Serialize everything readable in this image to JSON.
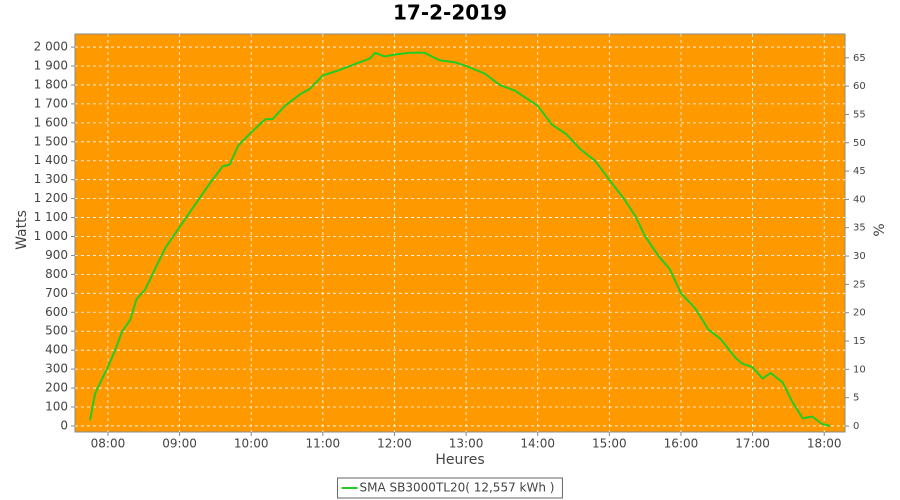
{
  "chart_data": {
    "type": "line",
    "title": "17-2-2019",
    "x_label": "Heures",
    "y_label": "Watts",
    "y2_label": "%",
    "x": [
      7.75,
      7.82,
      7.92,
      8.0,
      8.1,
      8.2,
      8.31,
      8.4,
      8.52,
      8.66,
      8.8,
      9.0,
      9.22,
      9.42,
      9.6,
      9.7,
      9.82,
      10.0,
      10.2,
      10.3,
      10.47,
      10.68,
      10.82,
      11.0,
      11.24,
      11.45,
      11.66,
      11.73,
      11.86,
      12.0,
      12.21,
      12.42,
      12.63,
      12.84,
      13.0,
      13.26,
      13.47,
      13.68,
      14.0,
      14.2,
      14.4,
      14.6,
      14.8,
      15.0,
      15.22,
      15.36,
      15.5,
      15.7,
      15.84,
      16.0,
      16.2,
      16.38,
      16.55,
      16.76,
      16.85,
      17.0,
      17.14,
      17.25,
      17.42,
      17.55,
      17.7,
      17.83,
      17.97,
      18.08
    ],
    "series": [
      {
        "name": "SMA SB3000TL20( 12,557 kWh )",
        "color": "#22cc22",
        "values": [
          30,
          170,
          250,
          310,
          400,
          500,
          560,
          670,
          720,
          830,
          940,
          1050,
          1170,
          1280,
          1370,
          1380,
          1480,
          1550,
          1620,
          1620,
          1690,
          1750,
          1780,
          1850,
          1880,
          1910,
          1940,
          1970,
          1950,
          1960,
          1970,
          1970,
          1930,
          1920,
          1900,
          1860,
          1800,
          1770,
          1690,
          1590,
          1540,
          1460,
          1400,
          1300,
          1190,
          1110,
          1000,
          890,
          830,
          700,
          620,
          510,
          460,
          360,
          330,
          310,
          250,
          280,
          230,
          130,
          40,
          50,
          10,
          0
        ]
      }
    ],
    "xlim": [
      7.54,
      18.29
    ],
    "xticks": [
      {
        "value": 8,
        "label": "08:00"
      },
      {
        "value": 9,
        "label": "09:00"
      },
      {
        "value": 10,
        "label": "10:00"
      },
      {
        "value": 11,
        "label": "11:00"
      },
      {
        "value": 12,
        "label": "12:00"
      },
      {
        "value": 13,
        "label": "13:00"
      },
      {
        "value": 14,
        "label": "14:00"
      },
      {
        "value": 15,
        "label": "15:00"
      },
      {
        "value": 16,
        "label": "16:00"
      },
      {
        "value": 17,
        "label": "17:00"
      },
      {
        "value": 18,
        "label": "18:00"
      }
    ],
    "ylim": [
      -32,
      2069
    ],
    "yticks": [
      0,
      100,
      200,
      300,
      400,
      500,
      600,
      700,
      800,
      900,
      {
        "value": 1000,
        "label": "1 000"
      },
      {
        "value": 1100,
        "label": "1 100"
      },
      {
        "value": 1200,
        "label": "1 200"
      },
      {
        "value": 1300,
        "label": "1 300"
      },
      {
        "value": 1400,
        "label": "1 400"
      },
      {
        "value": 1500,
        "label": "1 500"
      },
      {
        "value": 1600,
        "label": "1 600"
      },
      {
        "value": 1700,
        "label": "1 700"
      },
      {
        "value": 1800,
        "label": "1 800"
      },
      {
        "value": 1900,
        "label": "1 900"
      },
      {
        "value": 2000,
        "label": "2 000"
      }
    ],
    "y2lim": [
      -1.06,
      69.2
    ],
    "y2ticks": [
      0,
      5,
      10,
      15,
      20,
      25,
      30,
      35,
      40,
      45,
      50,
      55,
      60,
      65
    ],
    "grid": true,
    "plot_background": "#ff9900"
  }
}
